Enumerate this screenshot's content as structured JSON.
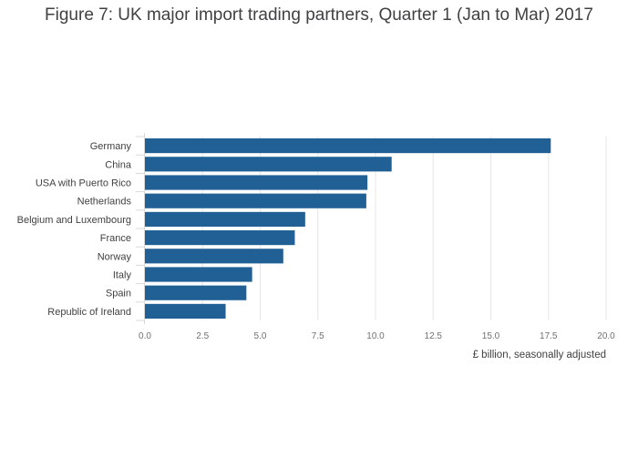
{
  "title": "Figure 7: UK major import trading partners, Quarter 1 (Jan to Mar) 2017",
  "chart_data": {
    "type": "bar",
    "orientation": "horizontal",
    "title": "Figure 7: UK major import trading partners, Quarter 1 (Jan to Mar) 2017",
    "xlabel": "£ billion, seasonally adjusted",
    "ylabel": "",
    "categories": [
      "Germany",
      "China",
      "USA with Puerto Rico",
      "Netherlands",
      "Belgium and Luxembourg",
      "France",
      "Norway",
      "Italy",
      "Spain",
      "Republic of Ireland"
    ],
    "values": [
      17.6,
      10.7,
      9.65,
      9.6,
      6.95,
      6.5,
      6.0,
      4.65,
      4.4,
      3.5
    ],
    "xlim": [
      0,
      20
    ],
    "xticks": [
      "0.0",
      "2.5",
      "5.0",
      "7.5",
      "10.0",
      "12.5",
      "15.0",
      "17.5",
      "20.0"
    ],
    "grid": true,
    "bar_color": "#206095"
  }
}
